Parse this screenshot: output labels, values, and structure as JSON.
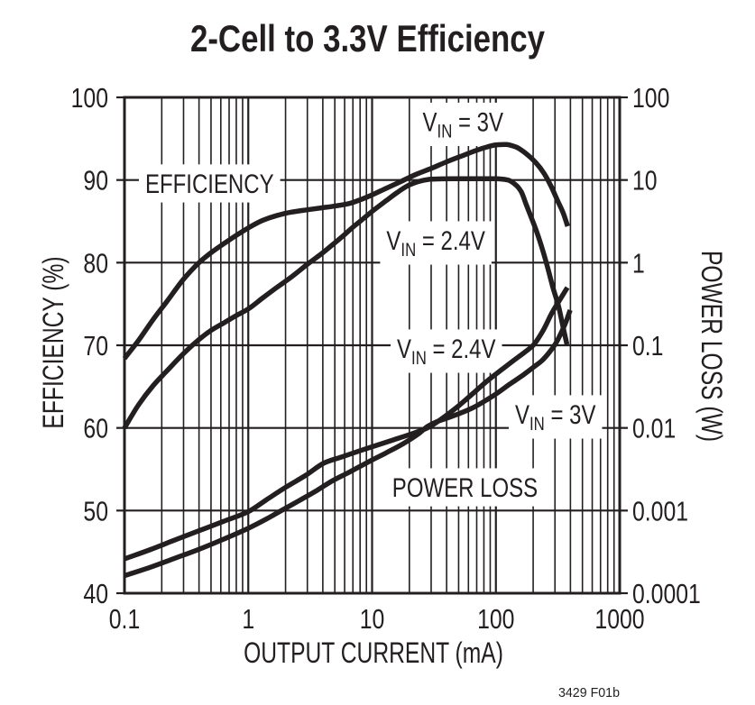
{
  "chart_data": {
    "type": "line",
    "title": "2-Cell to 3.3V Efficiency",
    "xlabel": "OUTPUT CURRENT (mA)",
    "footer": "3429 F01b",
    "x_axis": {
      "scale": "log",
      "range": [
        0.1,
        1000
      ],
      "ticks": [
        0.1,
        1,
        10,
        100,
        1000
      ],
      "tick_labels": [
        "0.1",
        "1",
        "10",
        "100",
        "1000"
      ],
      "minor_gridlines": true
    },
    "y_left_axis": {
      "label": "EFFICIENCY (%)",
      "scale": "linear",
      "range": [
        40,
        100
      ],
      "ticks": [
        100,
        90,
        80,
        70,
        60,
        50,
        40
      ],
      "tick_labels": [
        "100",
        "90",
        "80",
        "70",
        "60",
        "50",
        "40"
      ]
    },
    "y_right_axis": {
      "label": "POWER LOSS (W)",
      "scale": "log",
      "range": [
        0.0001,
        100
      ],
      "ticks": [
        100,
        10,
        1,
        0.1,
        0.01,
        0.001,
        0.0001
      ],
      "tick_labels": [
        "100",
        "10",
        "1",
        "0.1",
        "0.01",
        "0.001",
        "0.0001"
      ]
    },
    "grid": "on",
    "colors": {
      "ink": "#231f20",
      "background": "#ffffff"
    },
    "series": [
      {
        "name": "efficiency-vin-3v",
        "axis": "left",
        "points": [
          [
            0.1,
            68.4
          ],
          [
            0.13,
            70.6
          ],
          [
            0.17,
            73.1
          ],
          [
            0.22,
            75.3
          ],
          [
            0.3,
            78.0
          ],
          [
            0.4,
            80.0
          ],
          [
            0.5,
            81.2
          ],
          [
            0.65,
            82.4
          ],
          [
            0.8,
            83.3
          ],
          [
            1.0,
            84.2
          ],
          [
            1.3,
            85.1
          ],
          [
            1.7,
            85.7
          ],
          [
            2.2,
            86.1
          ],
          [
            3,
            86.4
          ],
          [
            4,
            86.65
          ],
          [
            5,
            86.85
          ],
          [
            6.5,
            87.15
          ],
          [
            8,
            87.6
          ],
          [
            10,
            88.2
          ],
          [
            13,
            89.0
          ],
          [
            17,
            89.8
          ],
          [
            22,
            90.6
          ],
          [
            30,
            91.4
          ],
          [
            40,
            92.2
          ],
          [
            55,
            93.0
          ],
          [
            70,
            93.6
          ],
          [
            85,
            94.0
          ],
          [
            100,
            94.25
          ],
          [
            120,
            94.3
          ],
          [
            145,
            94.0
          ],
          [
            175,
            93.2
          ],
          [
            210,
            92.1
          ],
          [
            245,
            90.8
          ],
          [
            280,
            89.2
          ],
          [
            315,
            87.5
          ],
          [
            350,
            86.0
          ],
          [
            380,
            84.4
          ]
        ]
      },
      {
        "name": "efficiency-vin-2.4v",
        "axis": "left",
        "points": [
          [
            0.1,
            60.0
          ],
          [
            0.13,
            62.8
          ],
          [
            0.17,
            65.1
          ],
          [
            0.22,
            66.9
          ],
          [
            0.3,
            69.0
          ],
          [
            0.4,
            70.7
          ],
          [
            0.5,
            71.8
          ],
          [
            0.65,
            72.8
          ],
          [
            0.8,
            73.6
          ],
          [
            1.0,
            74.4
          ],
          [
            1.3,
            75.7
          ],
          [
            1.7,
            77.0
          ],
          [
            2.2,
            78.2
          ],
          [
            3,
            79.8
          ],
          [
            4,
            81.2
          ],
          [
            5,
            82.4
          ],
          [
            6,
            83.4
          ],
          [
            7,
            84.3
          ],
          [
            8,
            85.0
          ],
          [
            10,
            86.2
          ],
          [
            13,
            87.5
          ],
          [
            16,
            88.5
          ],
          [
            20,
            89.4
          ],
          [
            25,
            89.9
          ],
          [
            30,
            90.1
          ],
          [
            45,
            90.15
          ],
          [
            70,
            90.15
          ],
          [
            100,
            90.15
          ],
          [
            125,
            90.0
          ],
          [
            145,
            89.4
          ],
          [
            160,
            88.6
          ],
          [
            176,
            87.0
          ],
          [
            195,
            85.3
          ],
          [
            214,
            83.7
          ],
          [
            240,
            81.4
          ],
          [
            263,
            79.3
          ],
          [
            290,
            76.9
          ],
          [
            321,
            74.7
          ],
          [
            350,
            72.1
          ],
          [
            375,
            70.1
          ]
        ]
      },
      {
        "name": "power-loss-vin-2.4v",
        "axis": "right",
        "points": [
          [
            0.1,
            0.00026
          ],
          [
            0.16,
            0.000335
          ],
          [
            0.25,
            0.000435
          ],
          [
            0.4,
            0.00057
          ],
          [
            0.63,
            0.00074
          ],
          [
            1.0,
            0.00097
          ],
          [
            1.4,
            0.00135
          ],
          [
            2.0,
            0.00191
          ],
          [
            2.9,
            0.00266
          ],
          [
            4.15,
            0.0038
          ],
          [
            5.8,
            0.0045
          ],
          [
            8,
            0.0053
          ],
          [
            11,
            0.0062
          ],
          [
            15,
            0.0072
          ],
          [
            20,
            0.0083
          ],
          [
            28,
            0.01
          ],
          [
            38,
            0.0135
          ],
          [
            50,
            0.0185
          ],
          [
            65,
            0.026
          ],
          [
            85,
            0.037
          ],
          [
            110,
            0.05
          ],
          [
            140,
            0.066
          ],
          [
            170,
            0.082
          ],
          [
            200,
            0.1
          ],
          [
            240,
            0.15
          ],
          [
            285,
            0.25
          ],
          [
            330,
            0.36
          ],
          [
            378,
            0.5
          ]
        ]
      },
      {
        "name": "power-loss-vin-3v",
        "axis": "right",
        "points": [
          [
            0.1,
            0.000163
          ],
          [
            0.16,
            0.000205
          ],
          [
            0.25,
            0.000262
          ],
          [
            0.4,
            0.00034
          ],
          [
            0.63,
            0.00045
          ],
          [
            1.0,
            0.00061
          ],
          [
            1.4,
            0.00079
          ],
          [
            1.85,
            0.001
          ],
          [
            2.6,
            0.00133
          ],
          [
            3.6,
            0.00176
          ],
          [
            4.8,
            0.0023
          ],
          [
            6.5,
            0.0029
          ],
          [
            9.4,
            0.0039
          ],
          [
            13,
            0.005
          ],
          [
            18,
            0.0065
          ],
          [
            24,
            0.0086
          ],
          [
            28,
            0.0104
          ],
          [
            33,
            0.0118
          ],
          [
            40,
            0.0131
          ],
          [
            50,
            0.0148
          ],
          [
            65,
            0.0175
          ],
          [
            85,
            0.022
          ],
          [
            105,
            0.027
          ],
          [
            128,
            0.0335
          ],
          [
            160,
            0.042
          ],
          [
            200,
            0.054
          ],
          [
            235,
            0.065
          ],
          [
            270,
            0.082
          ],
          [
            305,
            0.106
          ],
          [
            340,
            0.146
          ],
          [
            370,
            0.196
          ],
          [
            398,
            0.267
          ]
        ]
      }
    ],
    "annotations": [
      {
        "id": "efficiency-label",
        "parts": [
          {
            "t": "EFFICIENCY"
          }
        ],
        "x": 0.147,
        "y": 88.44,
        "box": true
      },
      {
        "id": "vin-3v-efficiency-label",
        "parts": [
          {
            "t": "V"
          },
          {
            "t": "IN",
            "sub": true
          },
          {
            "t": " = 3V"
          }
        ],
        "x": 25.6,
        "y": 95.91,
        "box": true
      },
      {
        "id": "vin-2.4v-efficiency-label",
        "parts": [
          {
            "t": "V"
          },
          {
            "t": "IN",
            "sub": true
          },
          {
            "t": " = 2.4V"
          }
        ],
        "x": 13.06,
        "y": 81.56,
        "box": true
      },
      {
        "id": "vin-2.4v-power-loss-label",
        "parts": [
          {
            "t": "V"
          },
          {
            "t": "IN",
            "sub": true
          },
          {
            "t": " = 2.4V"
          }
        ],
        "x": 15.87,
        "y": 68.47,
        "box": true
      },
      {
        "id": "vin-3v-power-loss-label",
        "parts": [
          {
            "t": "V"
          },
          {
            "t": "IN",
            "sub": true
          },
          {
            "t": " = 3V"
          }
        ],
        "x": 142.8,
        "y": 60.51,
        "box": true
      },
      {
        "id": "power-loss-label",
        "parts": [
          {
            "t": "POWER LOSS"
          }
        ],
        "x": 14.54,
        "y": 51.67,
        "box": true
      }
    ]
  }
}
